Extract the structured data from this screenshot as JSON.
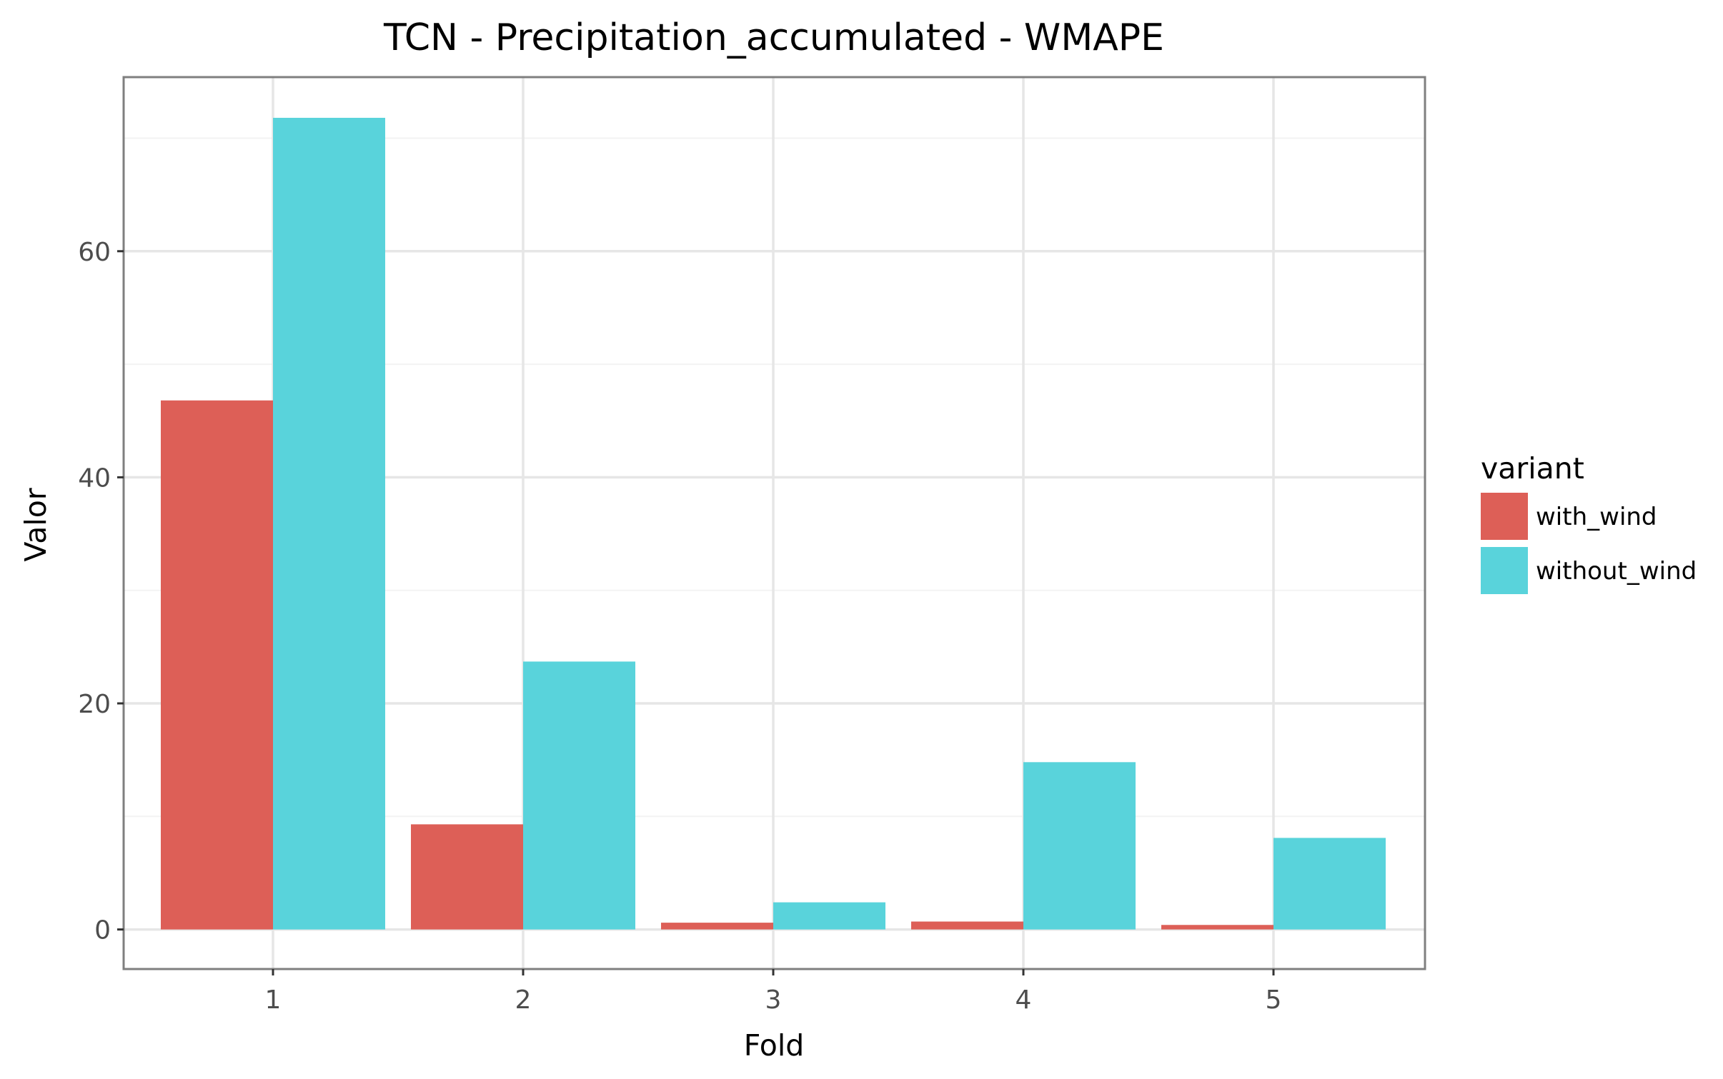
{
  "chart_data": {
    "type": "bar",
    "title": "TCN - Precipitation_accumulated - WMAPE",
    "xlabel": "Fold",
    "ylabel": "Valor",
    "categories": [
      "1",
      "2",
      "3",
      "4",
      "5"
    ],
    "series": [
      {
        "name": "with_wind",
        "color": "#dd5f57",
        "values": [
          46.8,
          9.3,
          0.6,
          0.7,
          0.4
        ]
      },
      {
        "name": "without_wind",
        "color": "#59d3db",
        "values": [
          71.8,
          23.7,
          2.4,
          14.8,
          8.1
        ]
      }
    ],
    "ylim": [
      -3.5,
      75.4
    ],
    "yticks": [
      0,
      20,
      40,
      60
    ],
    "yticks_minor": [
      10,
      30,
      50,
      70
    ],
    "grid": true,
    "legend": {
      "title": "variant",
      "position": "right"
    }
  }
}
